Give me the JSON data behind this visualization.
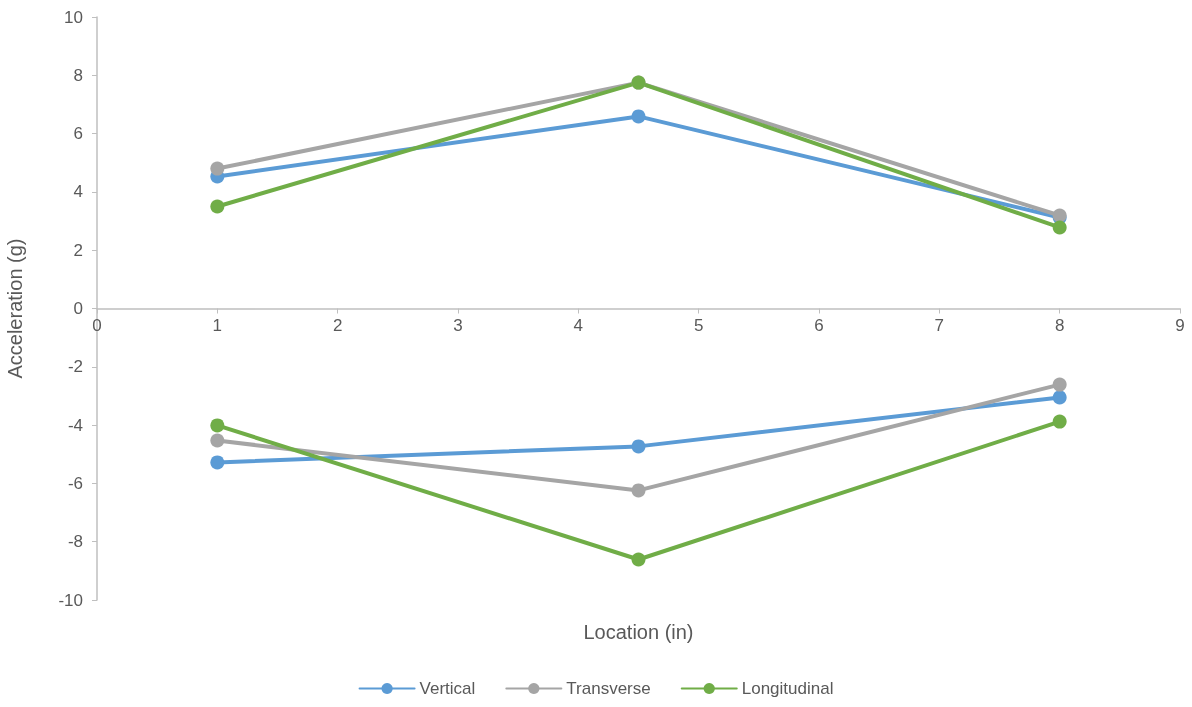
{
  "chart_data": {
    "type": "line",
    "xlabel": "Location (in)",
    "ylabel": "Acceleration (g)",
    "x": [
      1,
      4.5,
      8
    ],
    "series": [
      {
        "name": "Vertical",
        "color": "#5b9bd5",
        "values": [
          4.53,
          6.59,
          3.12
        ]
      },
      {
        "name": "Transverse",
        "color": "#a5a5a5",
        "values": [
          4.8,
          7.75,
          3.19
        ]
      },
      {
        "name": "Longitudinal",
        "color": "#70ad47",
        "values": [
          3.5,
          7.75,
          2.78
        ]
      },
      {
        "color": "#5b9bd5",
        "values": [
          -5.28,
          -4.73,
          -3.05
        ]
      },
      {
        "color": "#a5a5a5",
        "values": [
          -4.53,
          -6.24,
          -2.61
        ]
      },
      {
        "color": "#70ad47",
        "values": [
          -4.01,
          -8.61,
          -3.88
        ]
      }
    ],
    "xlim": [
      0,
      9
    ],
    "xticks": [
      0,
      1,
      2,
      3,
      4,
      5,
      6,
      7,
      8,
      9
    ],
    "ylim": [
      -10,
      10
    ],
    "yticks": [
      -10,
      -8,
      -6,
      -4,
      -2,
      0,
      2,
      4,
      6,
      8,
      10
    ],
    "grid": false,
    "legend": "bottom",
    "marker": "circle",
    "line_style": "solid"
  }
}
